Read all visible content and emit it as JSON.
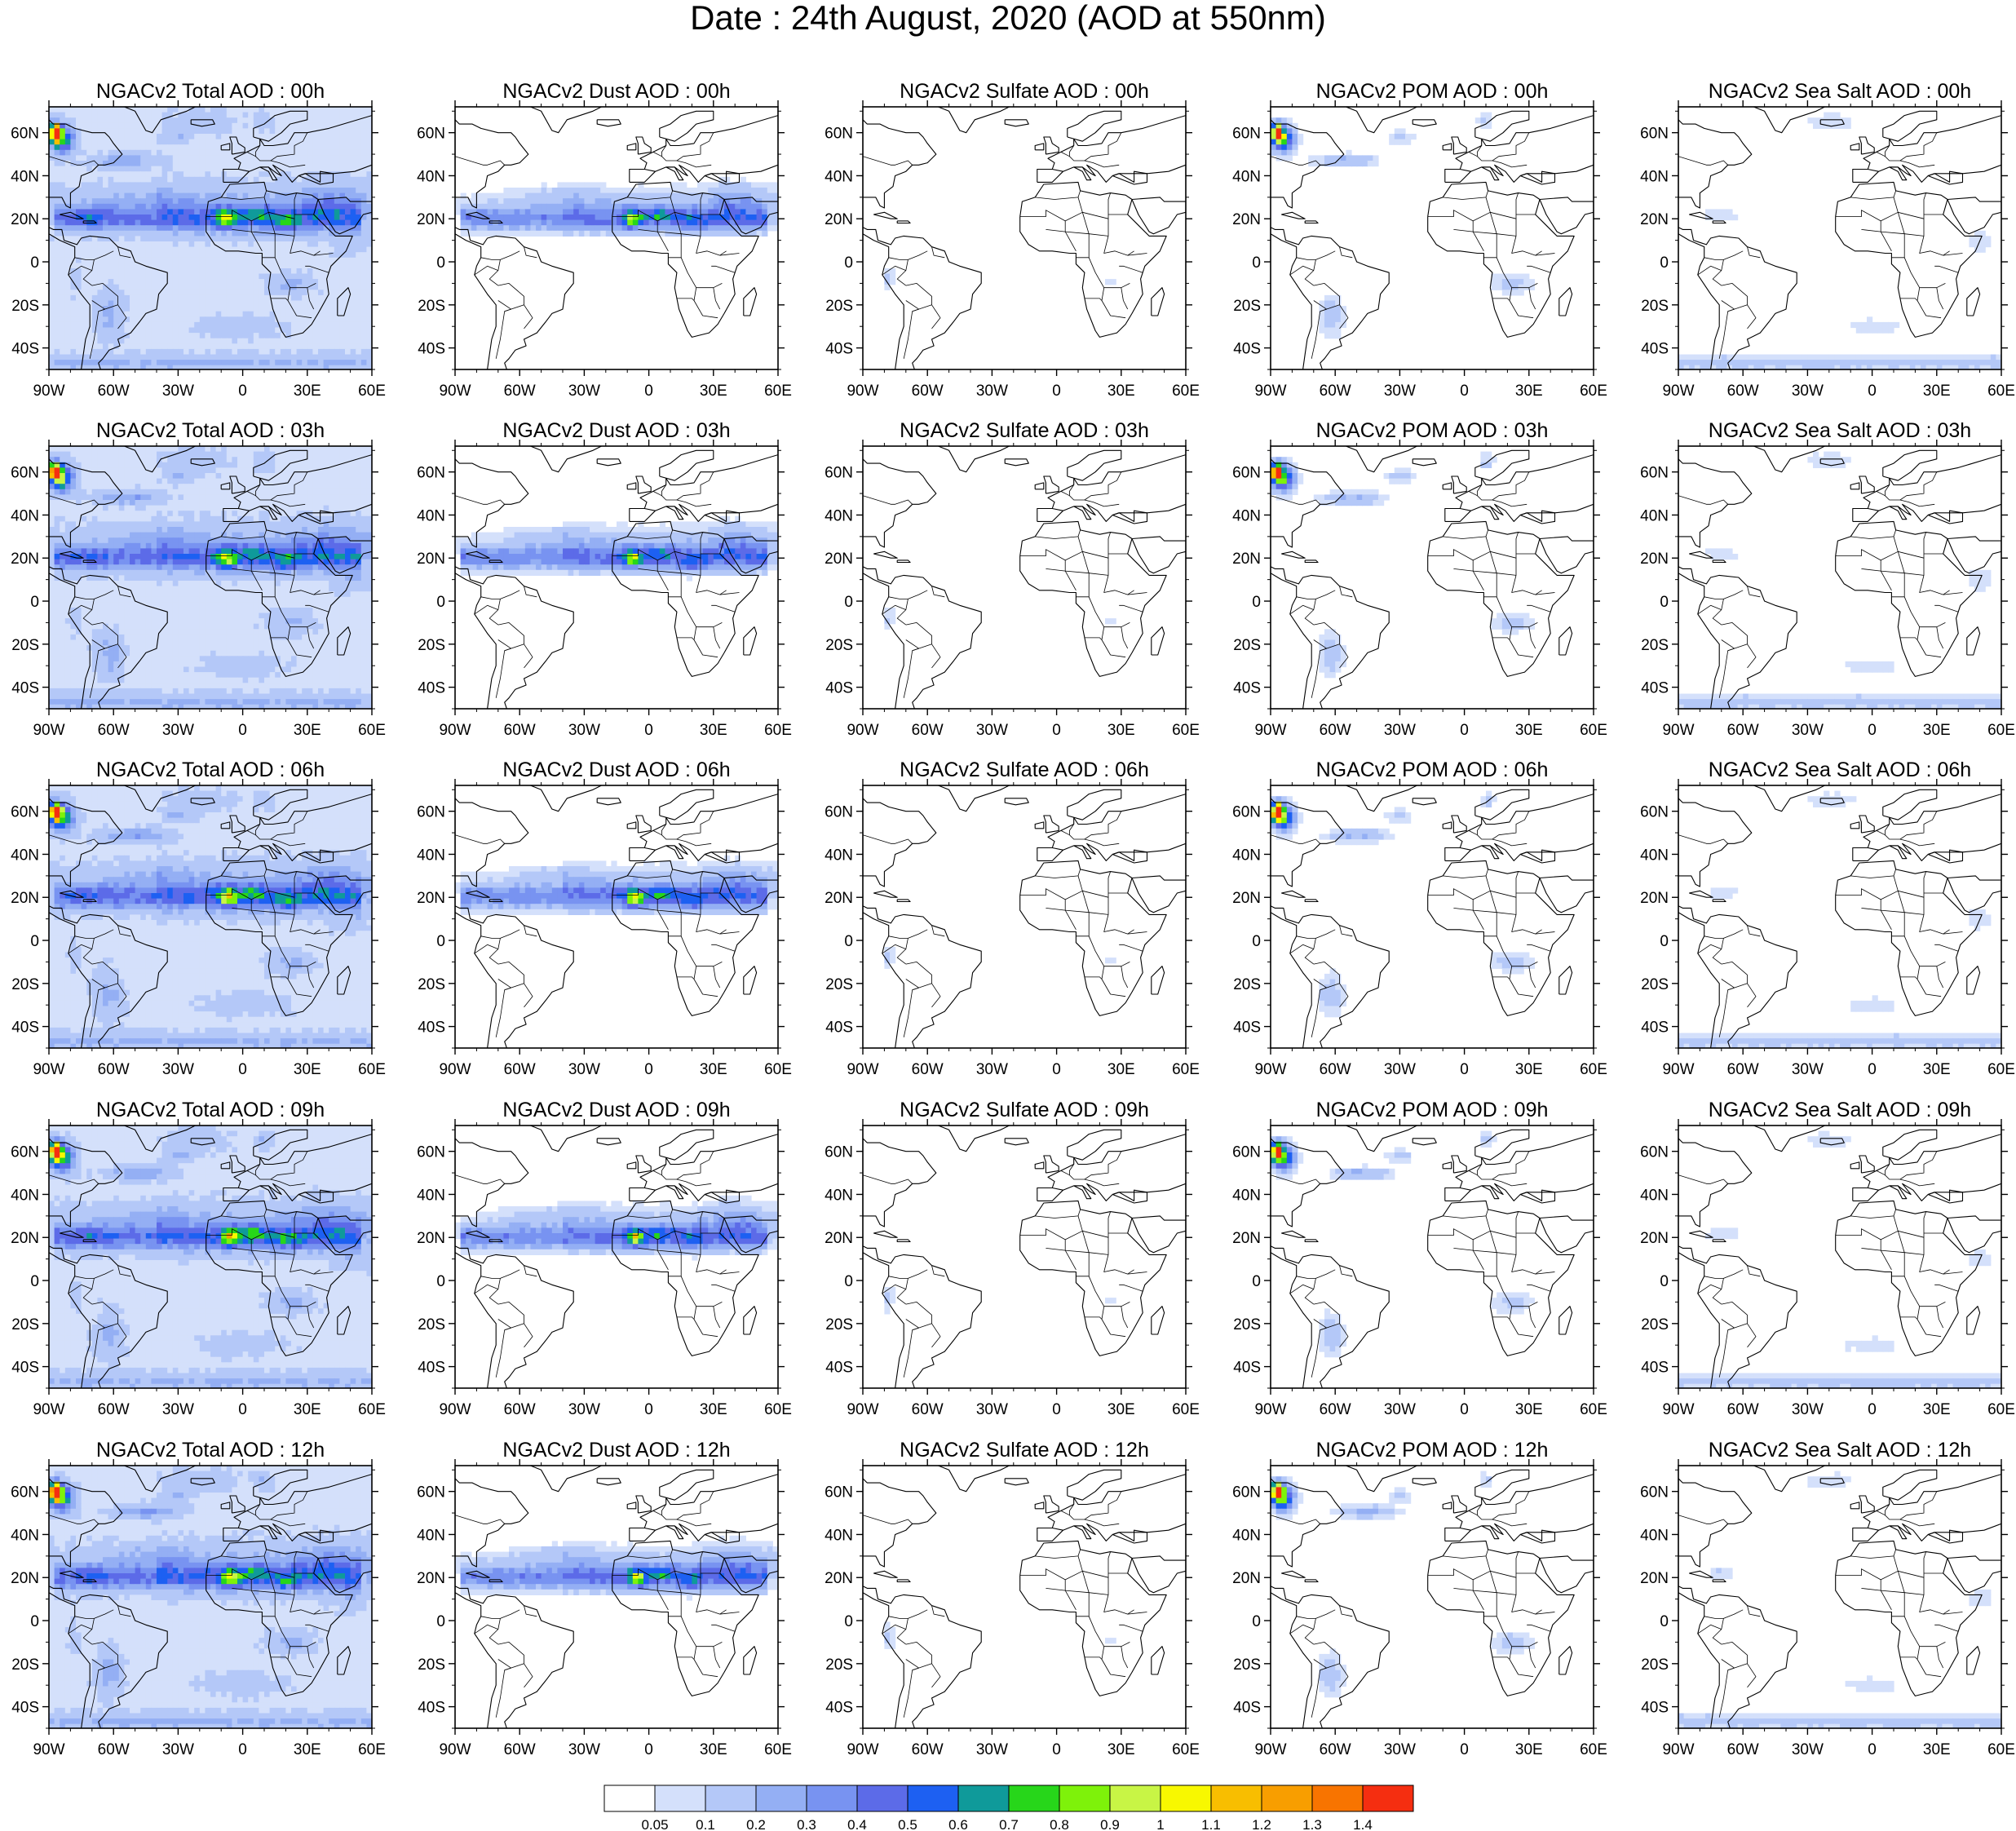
{
  "title": "Date : 24th August, 2020 (AOD at 550nm)",
  "rows": [
    [
      "NGACv2 Total AOD : 00h",
      "NGACv2 Dust AOD : 00h",
      "NGACv2 Sulfate AOD : 00h",
      "NGACv2 POM AOD : 00h",
      "NGACv2 Sea Salt AOD : 00h"
    ],
    [
      "NGACv2 Total AOD : 03h",
      "NGACv2 Dust AOD : 03h",
      "NGACv2 Sulfate AOD : 03h",
      "NGACv2 POM AOD : 03h",
      "NGACv2 Sea Salt AOD : 03h"
    ],
    [
      "NGACv2 Total AOD : 06h",
      "NGACv2 Dust AOD : 06h",
      "NGACv2 Sulfate AOD : 06h",
      "NGACv2 POM AOD : 06h",
      "NGACv2 Sea Salt AOD : 06h"
    ],
    [
      "NGACv2 Total AOD : 09h",
      "NGACv2 Dust AOD : 09h",
      "NGACv2 Sulfate AOD : 09h",
      "NGACv2 POM AOD : 09h",
      "NGACv2 Sea Salt  AOD : 09h"
    ],
    [
      "NGACv2 Total AOD  : 12h",
      "NGACv2 Dust AOD : 12h",
      "NGACv2 Sulfate AOD : 12h",
      "NGACv2 POM  AOD : 12h",
      "NGACv2 Sea Salt  AOD : 12h"
    ]
  ],
  "lon_ticks": [
    "90W",
    "60W",
    "30W",
    "0",
    "30E",
    "60E"
  ],
  "lat_ticks": [
    "60N",
    "40N",
    "20N",
    "0",
    "20S",
    "40S"
  ],
  "colorbar": {
    "labels": [
      "0.05",
      "0.1",
      "0.2",
      "0.3",
      "0.4",
      "0.5",
      "0.6",
      "0.7",
      "0.8",
      "0.9",
      "1",
      "1.1",
      "1.2",
      "1.3",
      "1.4"
    ],
    "colors": [
      "#ffffff",
      "#d4e0fb",
      "#b4c8f8",
      "#94aff4",
      "#7893f1",
      "#5c6be8",
      "#1d60f2",
      "#0f9a9a",
      "#27d61a",
      "#7ef20a",
      "#c8f545",
      "#f8f800",
      "#f8be00",
      "#f89e00",
      "#f87400",
      "#f52e10"
    ]
  }
}
